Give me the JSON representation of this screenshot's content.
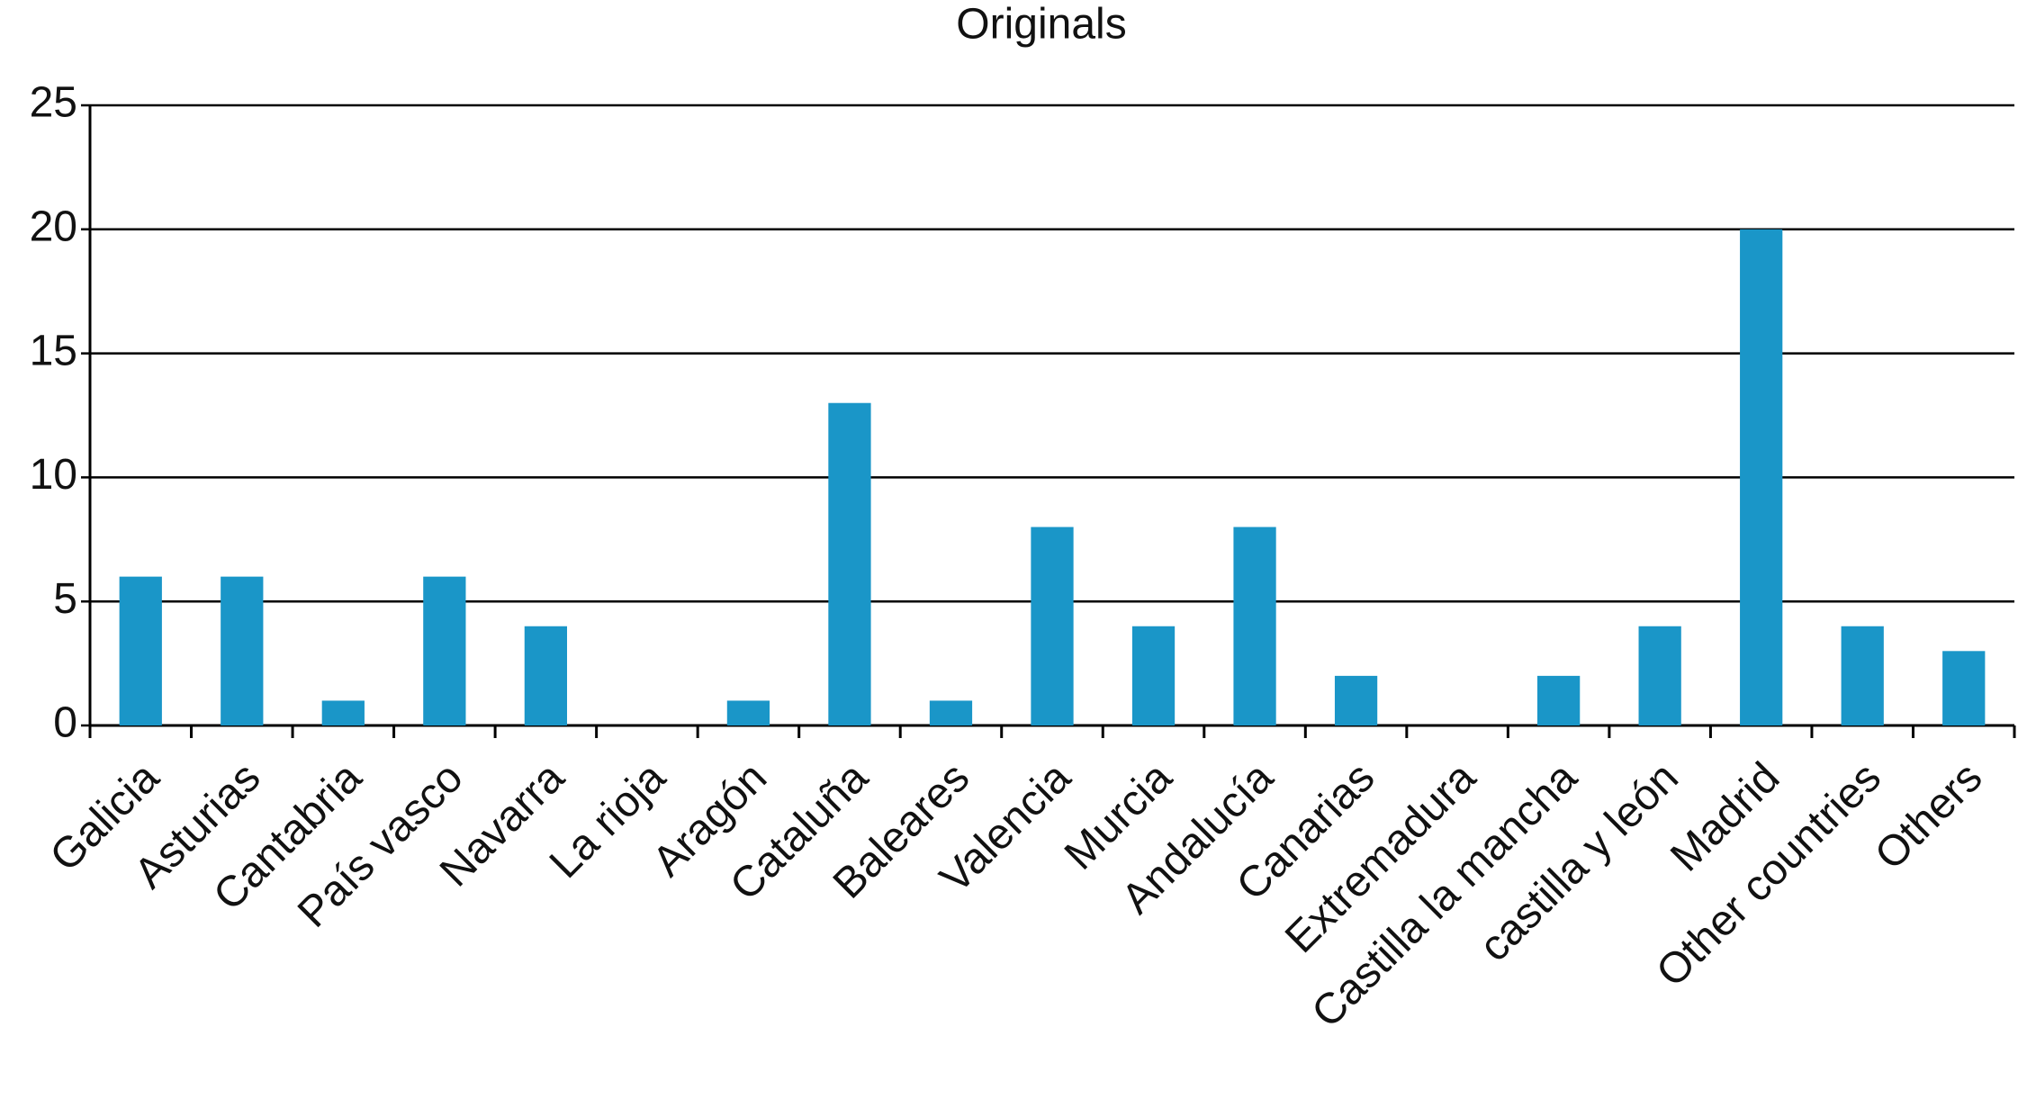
{
  "chart_data": {
    "type": "bar",
    "title": "Originals",
    "categories": [
      "Galicia",
      "Asturias",
      "Cantabria",
      "País vasco",
      "Navarra",
      "La rioja",
      "Aragón",
      "Cataluña",
      "Baleares",
      "Valencia",
      "Murcia",
      "Andalucía",
      "Canarias",
      "Extremadura",
      "Castilla la mancha",
      "castilla y león",
      "Madrid",
      "Other countries",
      "Others"
    ],
    "values": [
      6,
      6,
      1,
      6,
      4,
      0,
      1,
      13,
      1,
      8,
      4,
      8,
      2,
      0,
      2,
      4,
      20,
      4,
      3
    ],
    "color": "#1a96c8",
    "ylim": [
      0,
      25
    ],
    "yticks": [
      0,
      5,
      10,
      15,
      20,
      25
    ],
    "grid": true
  }
}
